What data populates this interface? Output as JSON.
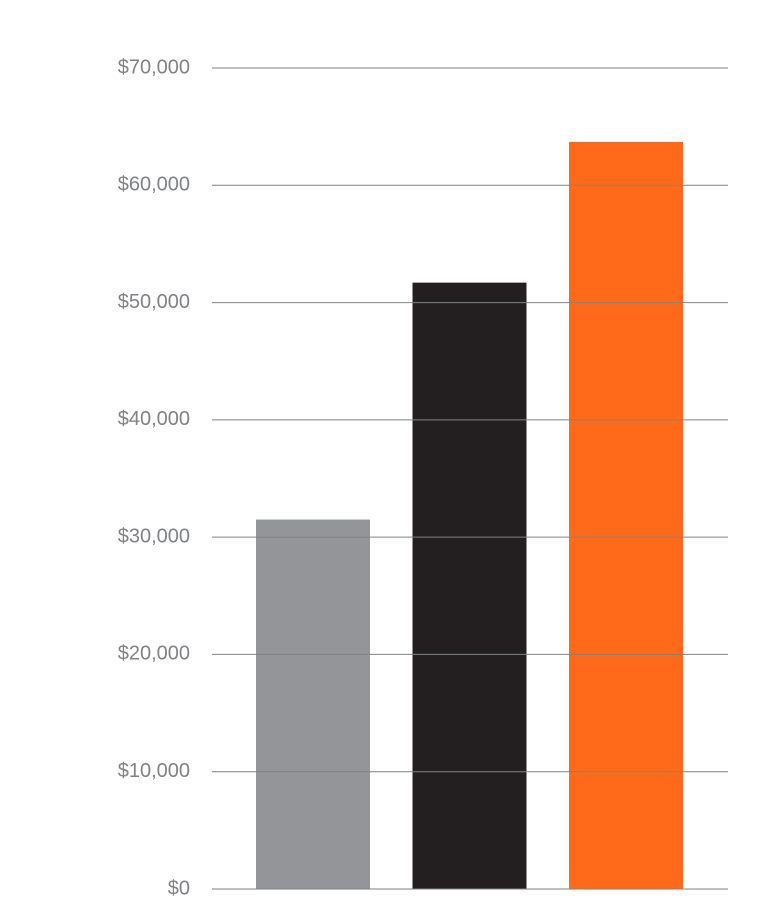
{
  "chart_data": {
    "type": "bar",
    "values": [
      31500,
      51700,
      63700
    ],
    "colors": [
      "#939598",
      "#231f20",
      "#ff6a1a"
    ],
    "ylim": [
      0,
      70000
    ],
    "yticks": [
      {
        "value": 0,
        "label": "$0"
      },
      {
        "value": 10000,
        "label": "$10,000"
      },
      {
        "value": 20000,
        "label": "$20,000"
      },
      {
        "value": 30000,
        "label": "$30,000"
      },
      {
        "value": 40000,
        "label": "$40,000"
      },
      {
        "value": 50000,
        "label": "$50,000"
      },
      {
        "value": 60000,
        "label": "$60,000"
      },
      {
        "value": 70000,
        "label": "$70,000"
      }
    ],
    "grid": true
  }
}
